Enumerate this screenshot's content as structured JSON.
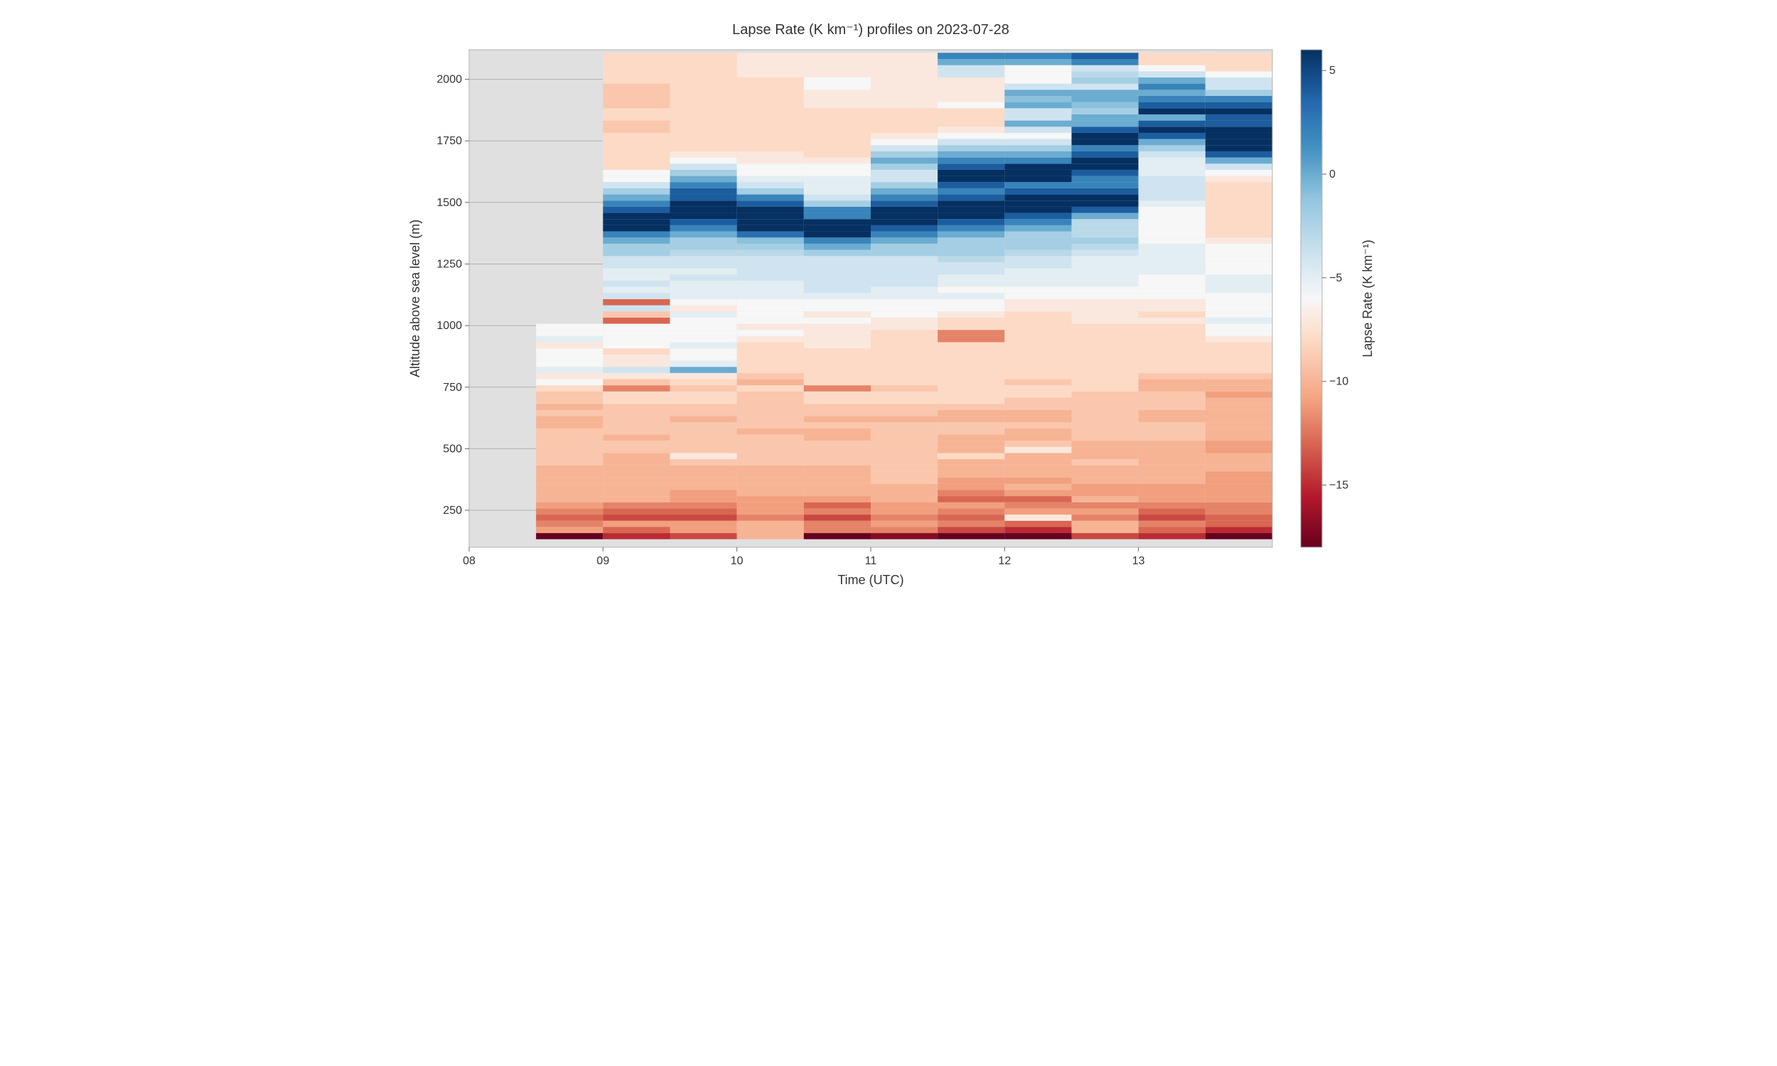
{
  "chart": {
    "type": "heatmap",
    "title": "Lapse Rate (K km⁻¹) profiles on 2023-07-28",
    "title_fontsize": 20,
    "background_color": "#ffffff",
    "nan_color": "#e0e0e0",
    "grid_color": "#b0b0b0",
    "font_family": "Segoe UI, Helvetica Neue, Arial, sans-serif",
    "x": {
      "label": "Time (UTC)",
      "label_fontsize": 18,
      "values_hours": [
        8.0,
        8.5,
        9.0,
        9.5,
        10.0,
        10.5,
        11.0,
        11.5,
        12.0,
        12.5,
        13.0,
        13.5
      ],
      "lim": [
        8.0,
        14.0
      ],
      "ticks": [
        8,
        9,
        10,
        11,
        12,
        13
      ],
      "tick_labels": [
        "08",
        "09",
        "10",
        "11",
        "12",
        "13"
      ],
      "tick_fontsize": 16
    },
    "y": {
      "label": "Altitude above sea level (m)",
      "label_fontsize": 18,
      "lim": [
        100,
        2120
      ],
      "altitudes_m": [
        120,
        145,
        170,
        195,
        220,
        245,
        270,
        295,
        320,
        345,
        370,
        395,
        420,
        445,
        470,
        495,
        520,
        545,
        570,
        595,
        620,
        645,
        670,
        695,
        720,
        745,
        770,
        795,
        820,
        845,
        870,
        895,
        920,
        945,
        970,
        995,
        1020,
        1045,
        1070,
        1095,
        1120,
        1145,
        1170,
        1195,
        1220,
        1245,
        1270,
        1295,
        1320,
        1345,
        1370,
        1395,
        1420,
        1445,
        1470,
        1495,
        1520,
        1545,
        1570,
        1595,
        1620,
        1645,
        1670,
        1695,
        1720,
        1745,
        1770,
        1795,
        1820,
        1845,
        1870,
        1895,
        1920,
        1945,
        1970,
        1995,
        2020,
        2045,
        2070,
        2095
      ],
      "ticks": [
        250,
        500,
        750,
        1000,
        1250,
        1500,
        1750,
        2000
      ],
      "tick_labels": [
        "250",
        "500",
        "750",
        "1000",
        "1250",
        "1500",
        "1750",
        "2000"
      ],
      "tick_fontsize": 16
    },
    "colorbar": {
      "label": "Lapse Rate (K km⁻¹)",
      "label_fontsize": 18,
      "vmin": -18,
      "vmax": 6,
      "vcenter": -6,
      "ticks": [
        -15,
        -10,
        -5,
        0,
        5
      ],
      "tick_labels": [
        "−15",
        "−10",
        "−5",
        "0",
        "5"
      ],
      "tick_fontsize": 16,
      "cmap_negative_end": "#67001f",
      "cmap_center": "#f6f6f6",
      "cmap_positive_end": "#083061"
    },
    "data_rows_bottom_to_top": [
      [
        null,
        null,
        null,
        null,
        null,
        null,
        null,
        null,
        null,
        null,
        null,
        null
      ],
      [
        null,
        -18,
        -15,
        -14,
        -10,
        -18,
        -17,
        -18,
        -18,
        -14,
        -15,
        -18
      ],
      [
        null,
        -11,
        -13,
        -11,
        -10,
        -12,
        -12,
        -14,
        -15,
        -10,
        -13,
        -15
      ],
      [
        null,
        -12,
        -11,
        -11,
        -10,
        -12,
        -11,
        -12,
        -13,
        -10,
        -12,
        -13
      ],
      [
        null,
        -13,
        -14,
        -14,
        -12,
        -14,
        -12,
        -13,
        -7,
        -12,
        -14,
        -13
      ],
      [
        null,
        -12,
        -13,
        -13,
        -11,
        -12,
        -11,
        -12,
        -11,
        -11,
        -13,
        -12
      ],
      [
        null,
        -11,
        -12,
        -12,
        -11,
        -13,
        -11,
        -11,
        -12,
        -12,
        -12,
        -12
      ],
      [
        null,
        -10,
        -10,
        -11,
        -11,
        -11,
        -10,
        -13,
        -13,
        -10,
        -11,
        -11
      ],
      [
        null,
        -10,
        -10,
        -11,
        -10,
        -10,
        -10,
        -12,
        -11,
        -11,
        -11,
        -11
      ],
      [
        null,
        -10,
        -10,
        -10,
        -10,
        -10,
        -10,
        -11,
        -10,
        -11,
        -11,
        -11
      ],
      [
        null,
        -10,
        -10,
        -10,
        -10,
        -10,
        -9,
        -11,
        -11,
        -10,
        -10,
        -11
      ],
      [
        null,
        -10,
        -10,
        -10,
        -10,
        -10,
        -9,
        -10,
        -10,
        -10,
        -10,
        -11
      ],
      [
        null,
        -10,
        -10,
        -10,
        -10,
        -10,
        -9,
        -10,
        -10,
        -10,
        -10,
        -10
      ],
      [
        null,
        -9,
        -10,
        -9,
        -9,
        -9,
        -9,
        -10,
        -10,
        -9,
        -10,
        -10
      ],
      [
        null,
        -9,
        -10,
        -7,
        -9,
        -9,
        -9,
        -8,
        -10,
        -10,
        -10,
        -10
      ],
      [
        null,
        -9,
        -9,
        -9,
        -9,
        -9,
        -9,
        -10,
        -7,
        -10,
        -10,
        -11
      ],
      [
        null,
        -9,
        -9,
        -9,
        -9,
        -9,
        -9,
        -10,
        -9,
        -10,
        -10,
        -11
      ],
      [
        null,
        -9,
        -10,
        -9,
        -9,
        -10,
        -9,
        -10,
        -10,
        -9,
        -9,
        -10
      ],
      [
        null,
        -9,
        -9,
        -9,
        -10,
        -10,
        -9,
        -9,
        -10,
        -9,
        -9,
        -10
      ],
      [
        null,
        -10,
        -9,
        -9,
        -9,
        -9,
        -9,
        -9,
        -9,
        -9,
        -9,
        -10
      ],
      [
        null,
        -10,
        -9,
        -10,
        -9,
        -10,
        -10,
        -10,
        -10,
        -9,
        -10,
        -10
      ],
      [
        null,
        -9,
        -9,
        -9,
        -9,
        -9,
        -9,
        -10,
        -10,
        -9,
        -10,
        -10
      ],
      [
        null,
        -10,
        -9,
        -9,
        -9,
        -9,
        -9,
        -9,
        -9,
        -9,
        -9,
        -10
      ],
      [
        null,
        -9,
        -8,
        -8,
        -9,
        -8,
        -8,
        -8,
        -9,
        -9,
        -9,
        -10
      ],
      [
        null,
        -9,
        -8,
        -8,
        -9,
        -8,
        -8,
        -8,
        -8,
        -9,
        -9,
        -11
      ],
      [
        null,
        -8,
        -12,
        -9,
        -8,
        -12,
        -9,
        -8,
        -8,
        -8,
        -10,
        -10
      ],
      [
        null,
        -6,
        -9,
        -8,
        -10,
        -8,
        -8,
        -8,
        -9,
        -8,
        -10,
        -10
      ],
      [
        null,
        -7,
        -7,
        -7,
        -9,
        -8,
        -8,
        -8,
        -8,
        -8,
        -9,
        -9
      ],
      [
        null,
        -5,
        -4,
        0,
        -8,
        -8,
        -8,
        -8,
        -8,
        -8,
        -8,
        -8
      ],
      [
        null,
        -6,
        -7,
        -5,
        -8,
        -8,
        -8,
        -8,
        -8,
        -8,
        -8,
        -8
      ],
      [
        null,
        -6,
        -7,
        -6,
        -8,
        -8,
        -8,
        -8,
        -8,
        -8,
        -8,
        -8
      ],
      [
        null,
        -6,
        -8,
        -6,
        -8,
        -8,
        -8,
        -8,
        -8,
        -8,
        -8,
        -8
      ],
      [
        null,
        -7,
        -6,
        -5,
        -8,
        -7,
        -8,
        -8,
        -8,
        -8,
        -8,
        -8
      ],
      [
        null,
        -5,
        -6,
        -6,
        -7,
        -7,
        -8,
        -12,
        -8,
        -8,
        -8,
        -7
      ],
      [
        null,
        -6,
        -6,
        -6,
        -6,
        -7,
        -8,
        -12,
        -8,
        -8,
        -8,
        -6
      ],
      [
        null,
        -6,
        -6,
        -6,
        -7,
        -7,
        -7,
        -8,
        -8,
        -8,
        -8,
        -6
      ],
      [
        null,
        null,
        -13,
        -6,
        -6,
        -6,
        -7,
        -8,
        -8,
        -7,
        -7,
        -5
      ],
      [
        null,
        null,
        -9,
        -5,
        -6,
        -7,
        -6,
        -7,
        -8,
        -7,
        -8,
        -6
      ],
      [
        null,
        null,
        -4,
        -7,
        -6,
        -6,
        -6,
        -6,
        -7,
        -7,
        -7,
        -6
      ],
      [
        null,
        null,
        -13,
        -6,
        -6,
        -6,
        -6,
        -6,
        -7,
        -7,
        -7,
        -6
      ],
      [
        null,
        null,
        -4,
        -5,
        -5,
        -5,
        -5,
        -5,
        -6,
        -6,
        -6,
        -6
      ],
      [
        null,
        null,
        -5,
        -5,
        -5,
        -4,
        -5,
        -6,
        -6,
        -6,
        -6,
        -5
      ],
      [
        null,
        null,
        -4,
        -5,
        -5,
        -4,
        -4,
        -5,
        -5,
        -5,
        -6,
        -5
      ],
      [
        null,
        null,
        -5,
        -4,
        -4,
        -4,
        -4,
        -5,
        -5,
        -5,
        -6,
        -5
      ],
      [
        null,
        null,
        -5,
        -5,
        -4,
        -4,
        -4,
        -4,
        -5,
        -5,
        -5,
        -6
      ],
      [
        null,
        null,
        -4,
        -4,
        -4,
        -4,
        -4,
        -4,
        -4,
        -5,
        -5,
        -6
      ],
      [
        null,
        null,
        -4,
        -4,
        -4,
        -4,
        -4,
        -3,
        -4,
        -5,
        -5,
        -6
      ],
      [
        null,
        null,
        -2,
        -3,
        -3,
        -2,
        -2,
        -2,
        -3,
        -4,
        -5,
        -6
      ],
      [
        null,
        null,
        -2,
        -2,
        -2,
        0,
        -2,
        -2,
        -2,
        -3,
        -5,
        -6
      ],
      [
        null,
        null,
        0,
        -2,
        -1,
        2,
        0,
        -2,
        -2,
        -2,
        -6,
        -7
      ],
      [
        null,
        null,
        2,
        0,
        3,
        6,
        2,
        0,
        -2,
        -3,
        -6,
        -8
      ],
      [
        null,
        null,
        6,
        2,
        6,
        6,
        4,
        2,
        0,
        -3,
        -6,
        -8
      ],
      [
        null,
        null,
        6,
        4,
        6,
        6,
        6,
        4,
        2,
        -3,
        -6,
        -8
      ],
      [
        null,
        null,
        6,
        6,
        6,
        2,
        6,
        6,
        4,
        0,
        -6,
        -8
      ],
      [
        null,
        null,
        4,
        6,
        6,
        2,
        6,
        6,
        6,
        4,
        -6,
        -8
      ],
      [
        null,
        null,
        2,
        6,
        4,
        -2,
        4,
        6,
        6,
        6,
        -5,
        -8
      ],
      [
        null,
        null,
        0,
        4,
        2,
        -4,
        2,
        4,
        6,
        6,
        -4,
        -8
      ],
      [
        null,
        null,
        -2,
        4,
        -2,
        -5,
        0,
        2,
        4,
        4,
        -4,
        -8
      ],
      [
        null,
        null,
        -4,
        2,
        -4,
        -5,
        -2,
        4,
        2,
        2,
        -4,
        -8
      ],
      [
        null,
        null,
        -6,
        0,
        -5,
        -5,
        -4,
        6,
        6,
        2,
        -4,
        -7
      ],
      [
        null,
        null,
        -6,
        -2,
        -6,
        -6,
        -4,
        6,
        6,
        4,
        -5,
        -6
      ],
      [
        null,
        null,
        -8,
        -4,
        -6,
        -6,
        -2,
        4,
        6,
        6,
        -5,
        -4
      ],
      [
        null,
        null,
        -8,
        -6,
        -7,
        -7,
        0,
        2,
        2,
        6,
        -5,
        0
      ],
      [
        null,
        null,
        -8,
        -7,
        -7,
        -8,
        -2,
        0,
        0,
        4,
        -4,
        4
      ],
      [
        null,
        null,
        -8,
        -8,
        -8,
        -8,
        -4,
        -2,
        -2,
        2,
        -2,
        6
      ],
      [
        null,
        null,
        -8,
        -8,
        -8,
        -8,
        -6,
        -4,
        -4,
        6,
        0,
        6
      ],
      [
        null,
        null,
        -8,
        -8,
        -8,
        -8,
        -7,
        -6,
        -6,
        6,
        4,
        6
      ],
      [
        null,
        null,
        -9,
        -8,
        -8,
        -8,
        -8,
        -7,
        -4,
        4,
        6,
        6
      ],
      [
        null,
        null,
        -9,
        -8,
        -8,
        -8,
        -8,
        -8,
        0,
        0,
        4,
        4
      ],
      [
        null,
        null,
        -8,
        -8,
        -8,
        -8,
        -8,
        -8,
        -4,
        0,
        0,
        4
      ],
      [
        null,
        null,
        -8,
        -8,
        -8,
        -8,
        -8,
        -8,
        -4,
        -2,
        6,
        6
      ],
      [
        null,
        null,
        -9,
        -8,
        -8,
        -7,
        -7,
        -6,
        0,
        -1,
        4,
        4
      ],
      [
        null,
        null,
        -9,
        -8,
        -8,
        -7,
        -7,
        -7,
        -1,
        0,
        2,
        2
      ],
      [
        null,
        null,
        -9,
        -8,
        -8,
        -7,
        -7,
        -7,
        0,
        0,
        0,
        -2
      ],
      [
        null,
        null,
        -9,
        -8,
        -8,
        -6,
        -7,
        -7,
        -4,
        -4,
        2,
        -4
      ],
      [
        null,
        null,
        -8,
        -8,
        -8,
        -6,
        -7,
        -7,
        -6,
        -2,
        0,
        -4
      ],
      [
        null,
        null,
        -8,
        -8,
        -7,
        -7,
        -7,
        -4,
        -6,
        -3,
        -4,
        -6
      ],
      [
        null,
        null,
        -8,
        -8,
        -7,
        -7,
        -7,
        -4,
        -6,
        -4,
        -6,
        -8
      ],
      [
        null,
        null,
        -8,
        -8,
        -7,
        -7,
        -7,
        0,
        0,
        2,
        -8,
        -8
      ],
      [
        null,
        null,
        -8,
        -8,
        -7,
        -7,
        -7,
        2,
        2,
        4,
        -8,
        -8
      ]
    ]
  }
}
